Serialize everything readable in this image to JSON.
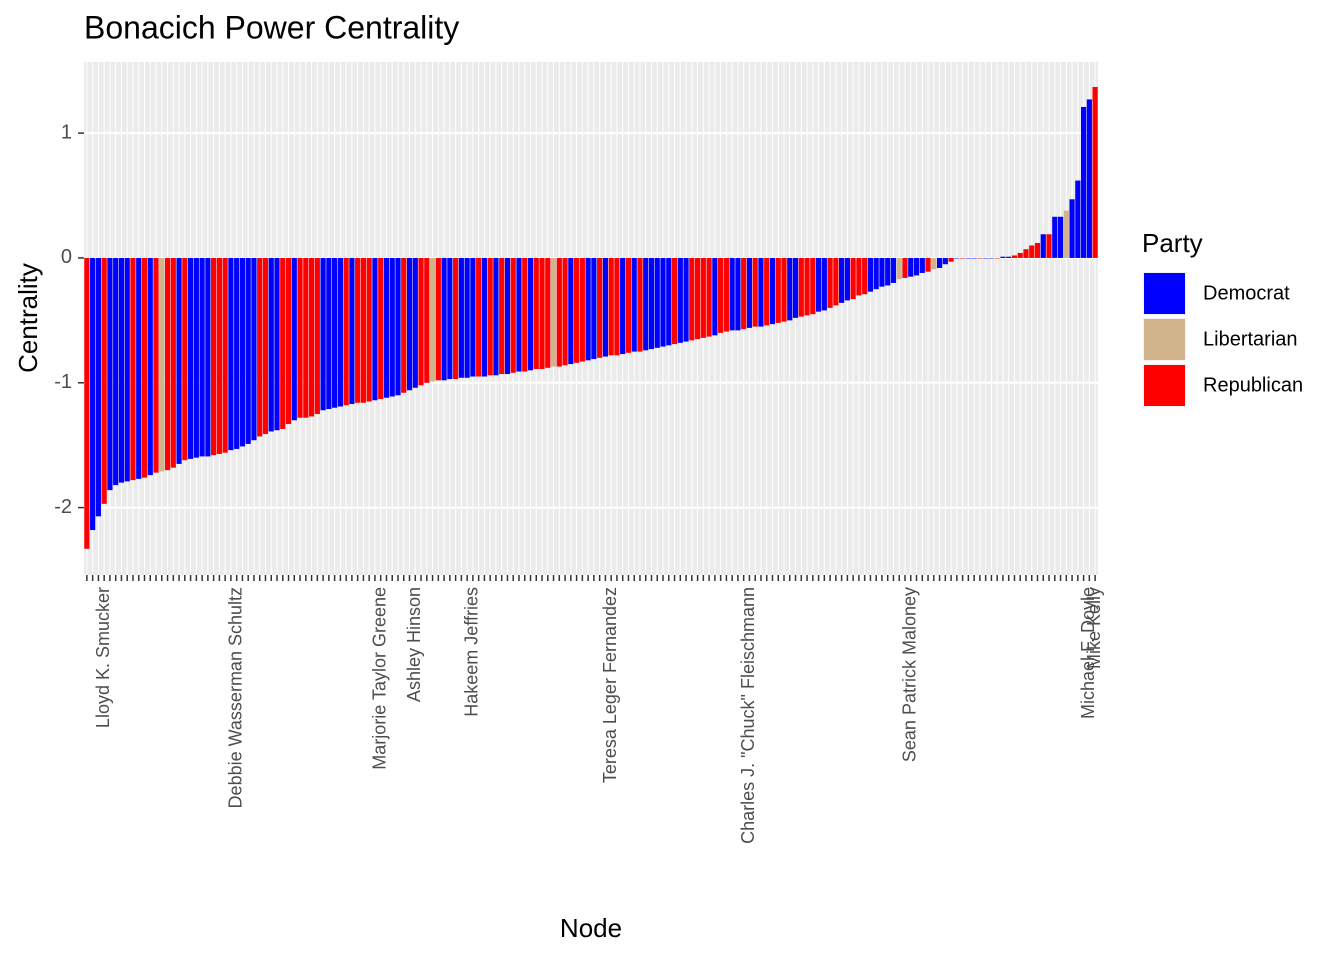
{
  "chart_data": {
    "type": "bar",
    "title": "Bonacich Power Centrality",
    "x_label": "Node",
    "y_label": "Centrality",
    "ylim": [
      -2.54,
      1.57
    ],
    "yticks": [
      -2,
      -1,
      0,
      1
    ],
    "grid": true,
    "legend": {
      "title": "Party",
      "position": "right",
      "items": [
        {
          "name": "Democrat",
          "color": "blue"
        },
        {
          "name": "Libertarian",
          "color": "tan"
        },
        {
          "name": "Republican",
          "color": "red"
        }
      ]
    },
    "categories": [
      null,
      null,
      null,
      "Lloyd K. Smucker",
      null,
      null,
      null,
      null,
      null,
      null,
      null,
      null,
      null,
      null,
      null,
      null,
      null,
      null,
      null,
      null,
      null,
      null,
      null,
      null,
      null,
      null,
      "Debbie Wasserman Schultz",
      null,
      null,
      null,
      null,
      null,
      null,
      null,
      null,
      null,
      null,
      null,
      null,
      null,
      null,
      null,
      null,
      null,
      null,
      null,
      null,
      null,
      null,
      null,
      null,
      "Marjorie Taylor Greene",
      null,
      null,
      null,
      null,
      null,
      "Ashley Hinson",
      null,
      null,
      null,
      null,
      null,
      null,
      null,
      null,
      null,
      "Hakeem Jeffries",
      null,
      null,
      null,
      null,
      null,
      null,
      null,
      null,
      null,
      null,
      null,
      null,
      null,
      null,
      null,
      null,
      null,
      null,
      null,
      null,
      null,
      null,
      null,
      "Teresa Leger Fernandez",
      null,
      null,
      null,
      null,
      null,
      null,
      null,
      null,
      null,
      null,
      null,
      null,
      null,
      null,
      null,
      null,
      null,
      null,
      null,
      null,
      null,
      null,
      null,
      "Charles J. \"Chuck\" Fleischmann",
      null,
      null,
      null,
      null,
      null,
      null,
      null,
      null,
      null,
      null,
      null,
      null,
      null,
      null,
      null,
      null,
      null,
      null,
      null,
      null,
      null,
      null,
      null,
      null,
      null,
      null,
      null,
      "Sean Patrick Maloney",
      null,
      null,
      null,
      null,
      null,
      null,
      null,
      null,
      null,
      null,
      null,
      null,
      null,
      null,
      null,
      null,
      null,
      null,
      null,
      null,
      null,
      null,
      null,
      null,
      null,
      null,
      null,
      null,
      null,
      null,
      "Michael F. Doyle",
      "Mike Kelly"
    ],
    "values": [
      -2.33,
      -2.18,
      -2.07,
      -1.97,
      -1.86,
      -1.82,
      -1.8,
      -1.79,
      -1.78,
      -1.77,
      -1.76,
      -1.74,
      -1.72,
      -1.71,
      -1.7,
      -1.68,
      -1.65,
      -1.62,
      -1.61,
      -1.6,
      -1.59,
      -1.59,
      -1.58,
      -1.57,
      -1.56,
      -1.54,
      -1.53,
      -1.51,
      -1.49,
      -1.46,
      -1.43,
      -1.41,
      -1.39,
      -1.38,
      -1.37,
      -1.33,
      -1.3,
      -1.28,
      -1.28,
      -1.27,
      -1.25,
      -1.22,
      -1.21,
      -1.2,
      -1.19,
      -1.18,
      -1.17,
      -1.16,
      -1.16,
      -1.15,
      -1.14,
      -1.13,
      -1.12,
      -1.11,
      -1.1,
      -1.08,
      -1.06,
      -1.04,
      -1.02,
      -1.0,
      -0.99,
      -0.98,
      -0.98,
      -0.97,
      -0.97,
      -0.96,
      -0.96,
      -0.95,
      -0.95,
      -0.95,
      -0.94,
      -0.94,
      -0.93,
      -0.93,
      -0.92,
      -0.91,
      -0.91,
      -0.9,
      -0.89,
      -0.89,
      -0.88,
      -0.87,
      -0.87,
      -0.86,
      -0.85,
      -0.84,
      -0.83,
      -0.82,
      -0.81,
      -0.8,
      -0.79,
      -0.78,
      -0.78,
      -0.77,
      -0.76,
      -0.75,
      -0.75,
      -0.74,
      -0.73,
      -0.72,
      -0.71,
      -0.7,
      -0.69,
      -0.68,
      -0.67,
      -0.66,
      -0.65,
      -0.64,
      -0.63,
      -0.62,
      -0.6,
      -0.59,
      -0.58,
      -0.58,
      -0.57,
      -0.56,
      -0.55,
      -0.55,
      -0.54,
      -0.53,
      -0.52,
      -0.51,
      -0.5,
      -0.48,
      -0.47,
      -0.46,
      -0.45,
      -0.43,
      -0.42,
      -0.4,
      -0.38,
      -0.36,
      -0.34,
      -0.33,
      -0.3,
      -0.29,
      -0.27,
      -0.25,
      -0.23,
      -0.22,
      -0.2,
      -0.17,
      -0.16,
      -0.15,
      -0.14,
      -0.12,
      -0.11,
      -0.09,
      -0.08,
      -0.05,
      -0.03,
      0,
      0,
      0,
      0,
      0,
      0,
      0,
      0,
      0.01,
      0.01,
      0.02,
      0.04,
      0.07,
      0.1,
      0.12,
      0.19,
      0.19,
      0.33,
      0.33,
      0.38,
      0.47,
      0.62,
      1.21,
      1.27,
      1.37
    ],
    "colors": [
      "red",
      "blue",
      "blue",
      "red",
      "blue",
      "blue",
      "blue",
      "blue",
      "red",
      "blue",
      "red",
      "blue",
      "red",
      "tan",
      "red",
      "red",
      "blue",
      "red",
      "blue",
      "blue",
      "blue",
      "blue",
      "red",
      "red",
      "red",
      "blue",
      "blue",
      "blue",
      "blue",
      "blue",
      "red",
      "red",
      "blue",
      "blue",
      "red",
      "red",
      "blue",
      "red",
      "red",
      "red",
      "red",
      "blue",
      "blue",
      "blue",
      "blue",
      "red",
      "blue",
      "red",
      "red",
      "red",
      "blue",
      "red",
      "blue",
      "blue",
      "blue",
      "red",
      "blue",
      "blue",
      "red",
      "red",
      "tan",
      "red",
      "blue",
      "blue",
      "red",
      "blue",
      "blue",
      "blue",
      "red",
      "blue",
      "red",
      "blue",
      "red",
      "blue",
      "red",
      "blue",
      "red",
      "blue",
      "red",
      "red",
      "red",
      "tan",
      "red",
      "red",
      "blue",
      "red",
      "red",
      "blue",
      "blue",
      "red",
      "blue",
      "red",
      "red",
      "blue",
      "red",
      "blue",
      "red",
      "blue",
      "blue",
      "blue",
      "blue",
      "blue",
      "red",
      "blue",
      "blue",
      "red",
      "red",
      "red",
      "red",
      "blue",
      "red",
      "red",
      "blue",
      "blue",
      "red",
      "blue",
      "red",
      "blue",
      "red",
      "blue",
      "red",
      "red",
      "blue",
      "blue",
      "red",
      "red",
      "red",
      "blue",
      "blue",
      "red",
      "red",
      "blue",
      "blue",
      "red",
      "red",
      "red",
      "blue",
      "blue",
      "blue",
      "blue",
      "blue",
      "tan",
      "red",
      "blue",
      "blue",
      "blue",
      "red",
      "tan",
      "blue",
      "blue",
      "red",
      "blue",
      "red",
      "blue",
      "blue",
      "red",
      "blue",
      "blue",
      "red",
      "blue",
      "blue",
      "red",
      "red",
      "red",
      "red",
      "red",
      "blue",
      "red",
      "blue",
      "blue",
      "tan",
      "blue",
      "blue",
      "blue",
      "blue",
      "red"
    ]
  }
}
